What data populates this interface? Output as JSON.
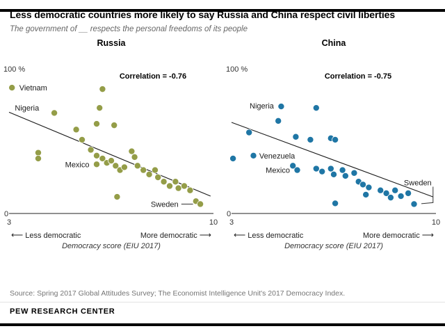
{
  "page": {
    "title": "Less democratic countries more likely to say Russia and China respect civil liberties",
    "subtitle": "The government of __ respects the personal freedoms of its people",
    "source": "Source: Spring 2017 Global Attitudes Survey; The Economist Intelligence Unit's 2017 Democracy Index.",
    "brand": "PEW RESEARCH CENTER"
  },
  "icons": {
    "arrow_left": "⟵",
    "arrow_right": "⟶"
  },
  "colors": {
    "russia_dot": "#949D48",
    "china_dot": "#1F76A5",
    "trend_line": "#1a1a1a",
    "axis": "#222222"
  },
  "chart_data": [
    {
      "type": "scatter",
      "title": "Russia",
      "correlation_label": "Correlation = -0.76",
      "xlabel": "Democracy score (EIU 2017)",
      "x_arrow_left_label": "Less democratic",
      "x_arrow_right_label": "More democratic",
      "xlim": [
        3,
        10
      ],
      "ylim": [
        0,
        100
      ],
      "x_tick_labels": [
        "3",
        "10"
      ],
      "y_top_label": "100 %",
      "y_bottom_label": "0",
      "dot_color": "#949D48",
      "corr_x": 215,
      "corr_y": 42,
      "trend_line": {
        "x1": 3,
        "y1": 70,
        "x2": 9.9,
        "y2": 12
      },
      "points": [
        [
          3.1,
          87
        ],
        [
          6.2,
          86
        ],
        [
          6.1,
          73
        ],
        [
          4.55,
          69.5
        ],
        [
          6.0,
          62
        ],
        [
          6.6,
          61
        ],
        [
          5.3,
          58
        ],
        [
          5.5,
          51
        ],
        [
          4.0,
          42
        ],
        [
          4.0,
          38
        ],
        [
          5.8,
          44
        ],
        [
          6.0,
          40
        ],
        [
          6.2,
          38
        ],
        [
          6.0,
          34
        ],
        [
          6.35,
          35
        ],
        [
          6.5,
          36.5
        ],
        [
          6.65,
          33
        ],
        [
          6.8,
          30
        ],
        [
          6.95,
          32
        ],
        [
          7.2,
          43
        ],
        [
          7.3,
          39
        ],
        [
          7.4,
          33
        ],
        [
          7.6,
          30
        ],
        [
          7.8,
          27
        ],
        [
          8.0,
          30
        ],
        [
          8.1,
          25
        ],
        [
          8.3,
          22
        ],
        [
          8.5,
          19
        ],
        [
          8.7,
          22
        ],
        [
          8.8,
          17.5
        ],
        [
          9.0,
          19
        ],
        [
          9.2,
          16
        ],
        [
          6.7,
          11.5
        ],
        [
          9.4,
          8.5
        ],
        [
          9.55,
          6.5
        ]
      ],
      "annotations": [
        {
          "label": "Vietnam",
          "x": 3.35,
          "y": 87,
          "anchor": "start"
        },
        {
          "label": "Nigeria",
          "x": 3.2,
          "y": 73,
          "anchor": "start"
        },
        {
          "label": "Mexico",
          "x": 5.75,
          "y": 34,
          "anchor": "end"
        },
        {
          "label": "Sweden",
          "x": 8.8,
          "y": 6.5,
          "anchor": "end",
          "leader": [
            [
              8.9,
              6.5
            ],
            [
              9.3,
              6.5
            ]
          ]
        }
      ]
    },
    {
      "type": "scatter",
      "title": "China",
      "correlation_label": "Correlation = -0.75",
      "xlabel": "Democracy score (EIU 2017)",
      "x_arrow_left_label": "Less democratic",
      "x_arrow_right_label": "More democratic",
      "xlim": [
        3,
        10
      ],
      "ylim": [
        0,
        100
      ],
      "x_tick_labels": [
        "3",
        "10"
      ],
      "y_top_label": "100 %",
      "y_bottom_label": "0",
      "dot_color": "#1F76A5",
      "corr_x": 190,
      "corr_y": 42,
      "trend_line": {
        "x1": 3,
        "y1": 63,
        "x2": 9.9,
        "y2": 11.5
      },
      "points": [
        [
          4.7,
          74
        ],
        [
          5.9,
          73
        ],
        [
          4.6,
          64
        ],
        [
          3.6,
          56
        ],
        [
          5.2,
          53
        ],
        [
          5.7,
          51
        ],
        [
          6.4,
          52
        ],
        [
          6.55,
          51
        ],
        [
          3.05,
          38
        ],
        [
          3.75,
          40
        ],
        [
          5.1,
          33
        ],
        [
          5.25,
          30
        ],
        [
          5.9,
          31
        ],
        [
          6.1,
          29
        ],
        [
          6.4,
          31
        ],
        [
          6.5,
          27
        ],
        [
          6.8,
          30
        ],
        [
          6.9,
          26
        ],
        [
          7.2,
          28
        ],
        [
          7.35,
          22
        ],
        [
          7.5,
          20
        ],
        [
          7.7,
          18
        ],
        [
          8.1,
          16
        ],
        [
          8.3,
          14
        ],
        [
          8.6,
          16
        ],
        [
          8.8,
          12
        ],
        [
          9.05,
          14
        ],
        [
          6.55,
          7
        ],
        [
          7.6,
          13
        ],
        [
          8.45,
          11
        ],
        [
          9.25,
          6.5
        ]
      ],
      "annotations": [
        {
          "label": "Nigeria",
          "x": 4.45,
          "y": 74.5,
          "anchor": "end"
        },
        {
          "label": "Venezuela",
          "x": 3.95,
          "y": 40,
          "anchor": "start"
        },
        {
          "label": "Mexico",
          "x": 5.0,
          "y": 30,
          "anchor": "end"
        },
        {
          "label": "Sweden",
          "x": 9.85,
          "y": 21.5,
          "anchor": "end",
          "leader": [
            [
              9.9,
              18.5
            ],
            [
              9.9,
              7.5
            ],
            [
              9.5,
              6.8
            ]
          ]
        }
      ]
    }
  ]
}
